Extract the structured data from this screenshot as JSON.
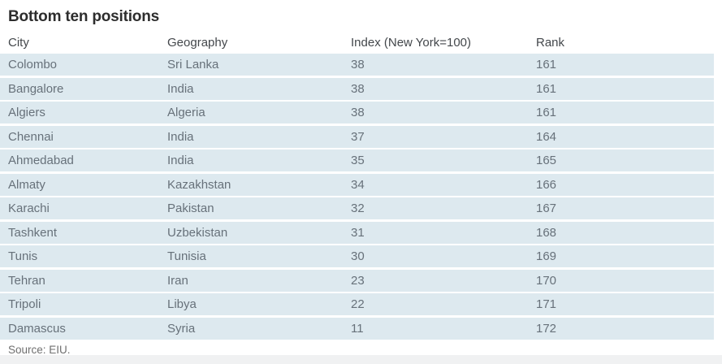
{
  "title": "Bottom ten positions",
  "source_note": "Source: EIU.",
  "colors": {
    "row_background": "#dde9ef",
    "footer_strip": "#f0f1f2",
    "title_text": "#2d2d2d",
    "header_text": "#43474b",
    "body_text": "#67717a",
    "source_text": "#6f6f6f"
  },
  "chart_data": {
    "type": "table",
    "title": "Bottom ten positions",
    "columns": [
      "City",
      "Geography",
      "Index (New York=100)",
      "Rank"
    ],
    "rows": [
      [
        "Colombo",
        "Sri Lanka",
        "38",
        "161"
      ],
      [
        "Bangalore",
        "India",
        "38",
        "161"
      ],
      [
        "Algiers",
        "Algeria",
        "38",
        "161"
      ],
      [
        "Chennai",
        "India",
        "37",
        "164"
      ],
      [
        "Ahmedabad",
        "India",
        "35",
        "165"
      ],
      [
        "Almaty",
        "Kazakhstan",
        "34",
        "166"
      ],
      [
        "Karachi",
        "Pakistan",
        "32",
        "167"
      ],
      [
        "Tashkent",
        "Uzbekistan",
        "31",
        "168"
      ],
      [
        "Tunis",
        "Tunisia",
        "30",
        "169"
      ],
      [
        "Tehran",
        "Iran",
        "23",
        "170"
      ],
      [
        "Tripoli",
        "Libya",
        "22",
        "171"
      ],
      [
        "Damascus",
        "Syria",
        "11",
        "172"
      ]
    ],
    "source": "Source: EIU.",
    "layout": {
      "striped_rows": true,
      "grid": false,
      "row_stripe_color": "#dde9ef"
    }
  }
}
